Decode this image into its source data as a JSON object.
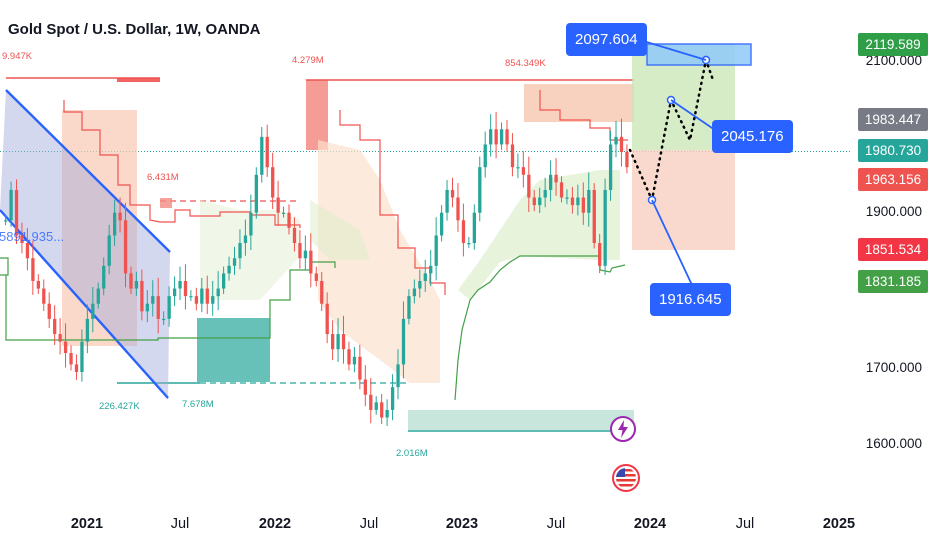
{
  "title": "Gold Spot / U.S. Dollar, 1W, OANDA",
  "price_labels": [
    {
      "value": "2119.589",
      "color": "#2e9e47"
    },
    {
      "value": "1983.447",
      "color": "#787b86"
    },
    {
      "value": "1980.730",
      "color": "#26a69a"
    },
    {
      "value": "1963.156",
      "color": "#ef5350"
    },
    {
      "value": "1851.534",
      "color": "#f23645"
    },
    {
      "value": "1831.185",
      "color": "#43a047"
    }
  ],
  "y_axis_ticks": [
    "2100.000",
    "1900.000",
    "1700.000",
    "1600.000"
  ],
  "x_axis_ticks": [
    {
      "label": "2021",
      "year": true
    },
    {
      "label": "Jul",
      "year": false
    },
    {
      "label": "2022",
      "year": true
    },
    {
      "label": "Jul",
      "year": false
    },
    {
      "label": "2023",
      "year": true
    },
    {
      "label": "Jul",
      "year": false
    },
    {
      "label": "2024",
      "year": true
    },
    {
      "label": "Jul",
      "year": false
    },
    {
      "label": "2025",
      "year": true
    }
  ],
  "callouts": {
    "top": "2097.604",
    "mid": "2045.176",
    "low": "1916.645"
  },
  "volume_labels": {
    "v1": "9.947K",
    "v2": "4.279M",
    "v3": "854.349K",
    "v4": "6.431M",
    "v5": "226.427K",
    "v6": "7.678M",
    "v7": "2.016M",
    "v8": "5891.935..."
  },
  "icons": [
    "lightning-event-icon",
    "us-flag-event-icon"
  ],
  "colors": {
    "bull": "#26a69a",
    "bear": "#ef5350",
    "accent": "#2962ff"
  },
  "chart_data": {
    "type": "candlestick",
    "symbol": "Gold Spot / U.S. Dollar",
    "interval": "1W",
    "source": "OANDA",
    "ylim": [
      1560,
      2190
    ],
    "x_range": [
      "2020-10",
      "2025-02"
    ],
    "key_levels": [
      2119.589,
      1983.447,
      1980.73,
      1963.156,
      1851.534,
      1831.185
    ],
    "projection_path": [
      1983,
      1916.645,
      2045.176,
      2020,
      2097.604,
      2080
    ],
    "close_path": [
      1890,
      1930,
      1870,
      1860,
      1840,
      1810,
      1800,
      1780,
      1760,
      1740,
      1730,
      1715,
      1700,
      1690,
      1730,
      1760,
      1780,
      1800,
      1830,
      1870,
      1900,
      1890,
      1820,
      1800,
      1810,
      1770,
      1780,
      1790,
      1760,
      1760,
      1790,
      1800,
      1810,
      1790,
      1790,
      1780,
      1800,
      1780,
      1790,
      1800,
      1820,
      1830,
      1840,
      1860,
      1870,
      1900,
      1950,
      2000,
      1960,
      1920,
      1900,
      1900,
      1880,
      1860,
      1840,
      1850,
      1820,
      1810,
      1780,
      1740,
      1720,
      1740,
      1720,
      1700,
      1710,
      1680,
      1660,
      1640,
      1650,
      1630,
      1640,
      1670,
      1700,
      1760,
      1790,
      1800,
      1810,
      1820,
      1830,
      1870,
      1900,
      1930,
      1920,
      1890,
      1860,
      1860,
      1900,
      1960,
      1990,
      2010,
      1990,
      2010,
      1990,
      1960,
      1960,
      1950,
      1920,
      1910,
      1920,
      1930,
      1950,
      1940,
      1920,
      1920,
      1910,
      1920,
      1900,
      1930,
      1860,
      1830,
      1930,
      1990,
      2000,
      1980,
      1960
    ]
  }
}
